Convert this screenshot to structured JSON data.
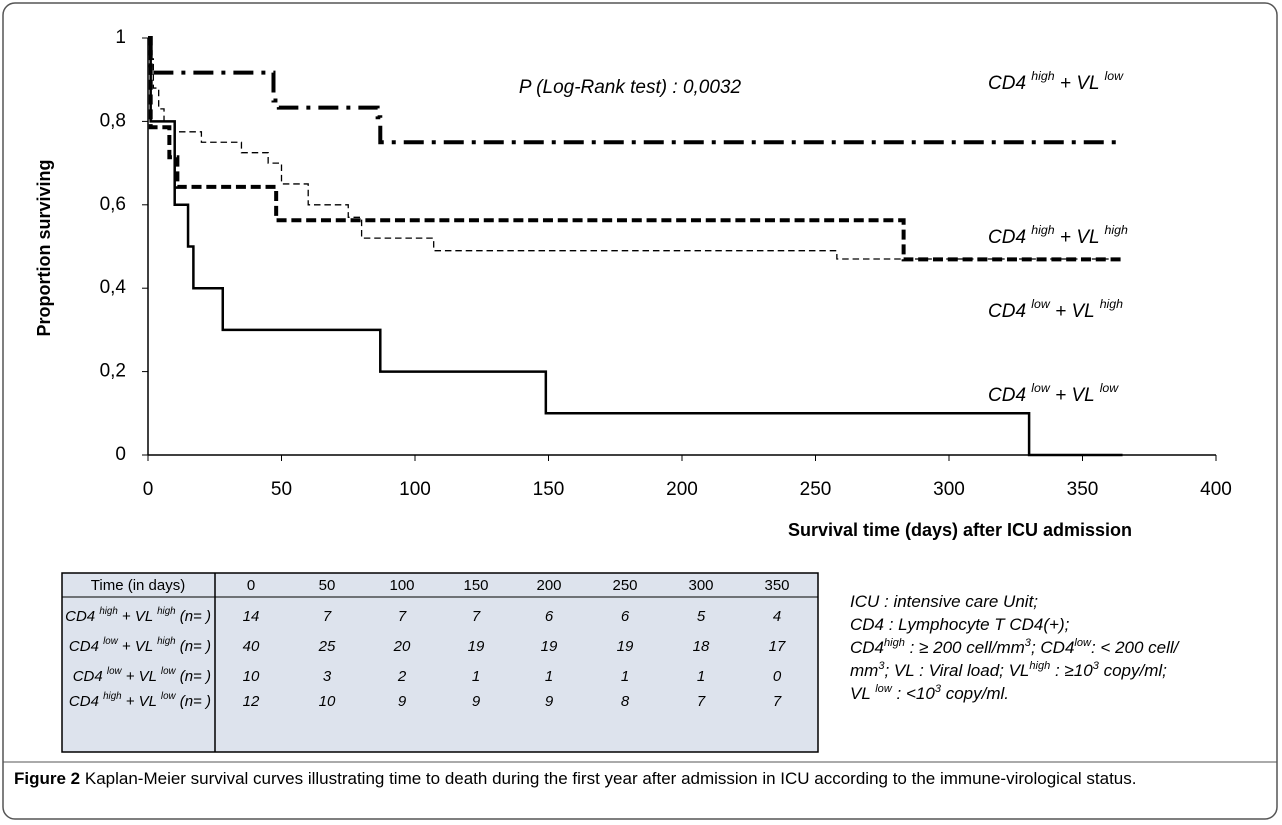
{
  "chart_data": {
    "type": "step",
    "ylabel": "Proportion surviving",
    "xlabel": "Survival time (days) after ICU admission",
    "annotation": "P (Log-Rank test) : 0,0032",
    "xlim": [
      0,
      400
    ],
    "xticks": [
      0,
      50,
      100,
      150,
      200,
      250,
      300,
      350,
      400
    ],
    "ylim": [
      0,
      1
    ],
    "yticks": [
      0,
      {
        "value": 0.2,
        "label": "0,2"
      },
      {
        "value": 0.4,
        "label": "0,4"
      },
      {
        "value": 0.6,
        "label": "0,6"
      },
      {
        "value": 0.8,
        "label": "0,8"
      },
      1
    ],
    "series": [
      {
        "name": "CD4 high + VL low",
        "color": "#000000",
        "line_style": "dashdot",
        "width": 4,
        "x": [
          0,
          1,
          47,
          49,
          86,
          87,
          365
        ],
        "values": [
          1,
          0.917,
          0.85,
          0.833,
          0.81,
          0.75,
          0.75
        ]
      },
      {
        "name": "CD4 high + VL high",
        "color": "#000000",
        "line_style": "dashed",
        "width": 4,
        "x": [
          0,
          1,
          8,
          11,
          48,
          283,
          365
        ],
        "values": [
          1,
          0.786,
          0.714,
          0.643,
          0.563,
          0.469,
          0.469
        ]
      },
      {
        "name": "CD4 low + VL high",
        "color": "#000000",
        "line_style": "dashed",
        "width": 1.3,
        "x": [
          0,
          1,
          2,
          4,
          6,
          10,
          20,
          35,
          45,
          50,
          60,
          75,
          80,
          107,
          258,
          365
        ],
        "values": [
          1,
          0.95,
          0.88,
          0.83,
          0.8,
          0.775,
          0.75,
          0.725,
          0.7,
          0.65,
          0.6,
          0.57,
          0.52,
          0.49,
          0.47,
          0.47
        ]
      },
      {
        "name": "CD4 low + VL low",
        "color": "#000000",
        "line_style": "solid",
        "width": 2.5,
        "x": [
          0,
          1,
          10,
          15,
          17,
          28,
          87,
          149,
          330,
          365
        ],
        "values": [
          1,
          0.8,
          0.6,
          0.5,
          0.4,
          0.3,
          0.2,
          0.1,
          0,
          0
        ]
      }
    ]
  },
  "table": {
    "header": [
      "Time (in days)",
      "0",
      "50",
      "100",
      "150",
      "200",
      "250",
      "300",
      "350"
    ],
    "rows": [
      {
        "label": "CD4 high + VL high (n= )",
        "values": [
          14,
          7,
          7,
          7,
          6,
          6,
          5,
          4
        ]
      },
      {
        "label": "CD4 low + VL high (n= )",
        "values": [
          40,
          25,
          20,
          19,
          19,
          19,
          18,
          17
        ]
      },
      {
        "label": "CD4 low + VL low (n= )",
        "values": [
          10,
          3,
          2,
          1,
          1,
          1,
          1,
          0
        ]
      },
      {
        "label": "CD4 high + VL low (n= )",
        "values": [
          12,
          10,
          9,
          9,
          9,
          8,
          7,
          7
        ]
      }
    ]
  },
  "notes": [
    [
      "ICU : intensive care Unit;"
    ],
    [
      "CD4 : Lymphocyte T CD4(+);"
    ],
    [
      "CD4",
      {
        "sup": "high"
      },
      " : ≥ 200 cell/mm",
      {
        "sup": "3"
      },
      "; CD4",
      {
        "sup": "low"
      },
      ": < 200 cell/"
    ],
    [
      "mm",
      {
        "sup": "3"
      },
      "; VL : Viral load; VL",
      {
        "sup": "high"
      },
      " : ≥10",
      {
        "sup": "3"
      },
      " copy/ml;"
    ],
    [
      "VL ",
      {
        "sup": "low"
      },
      " : <10",
      {
        "sup": "3"
      },
      " copy/ml."
    ]
  ],
  "caption": {
    "label": "Figure 2",
    "text": "Kaplan-Meier survival curves illustrating time to death during the first year after admission in ICU according to the immune-virological status."
  }
}
